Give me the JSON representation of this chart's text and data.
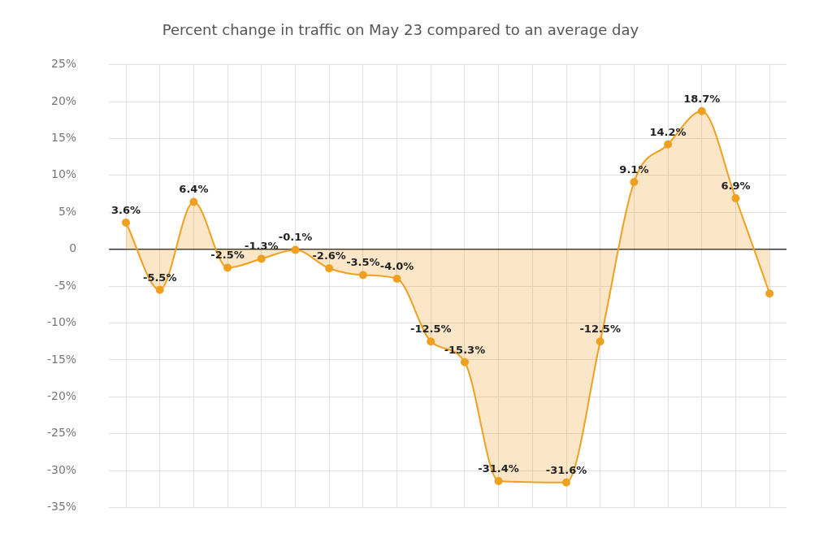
{
  "chart_data": {
    "type": "area",
    "title": "Percent change in traffic on May 23 compared to an average day",
    "categories": [
      null,
      null,
      null,
      null,
      null,
      null,
      null,
      null,
      null,
      null,
      null,
      null,
      null,
      null,
      null,
      null,
      null,
      null,
      null,
      null
    ],
    "series": [
      {
        "color": "#f0a020",
        "values": [
          3.6,
          -5.5,
          6.4,
          -2.5,
          -1.3,
          -0.1,
          -2.6,
          -3.5,
          -4.0,
          -12.5,
          -15.3,
          -31.4,
          null,
          -31.6,
          -12.5,
          9.1,
          14.2,
          18.7,
          6.9,
          -6.0
        ],
        "value_labels": [
          "3.6%",
          "-5.5%",
          "6.4%",
          "-2.5%",
          "-1.3%",
          "-0.1%",
          "-2.6%",
          "-3.5%",
          "-4.0%",
          "-12.5%",
          "-15.3%",
          "-31.4%",
          null,
          "-31.6%",
          "-12.5%",
          "9.1%",
          "14.2%",
          "18.7%",
          "6.9%",
          null
        ]
      }
    ],
    "ylim": [
      -35,
      25
    ],
    "yticks": [
      {
        "value": 25,
        "label": "25%"
      },
      {
        "value": 20,
        "label": "20%"
      },
      {
        "value": 15,
        "label": "15%"
      },
      {
        "value": 10,
        "label": "10%"
      },
      {
        "value": 5,
        "label": "5%"
      },
      0,
      {
        "value": -5,
        "label": "-5%"
      },
      {
        "value": -10,
        "label": "-10%"
      },
      {
        "value": -15,
        "label": "-15%"
      },
      {
        "value": -20,
        "label": "-20%"
      },
      {
        "value": -25,
        "label": "-25%"
      },
      {
        "value": -30,
        "label": "-30%"
      },
      {
        "value": -35,
        "label": "-35%"
      }
    ],
    "ref_lines": [
      {
        "axis": "y",
        "value": 0,
        "color": "#333333"
      }
    ],
    "grid": true,
    "legend": false,
    "marker": "circle",
    "line_style": "solid",
    "tick_labels": "y"
  }
}
